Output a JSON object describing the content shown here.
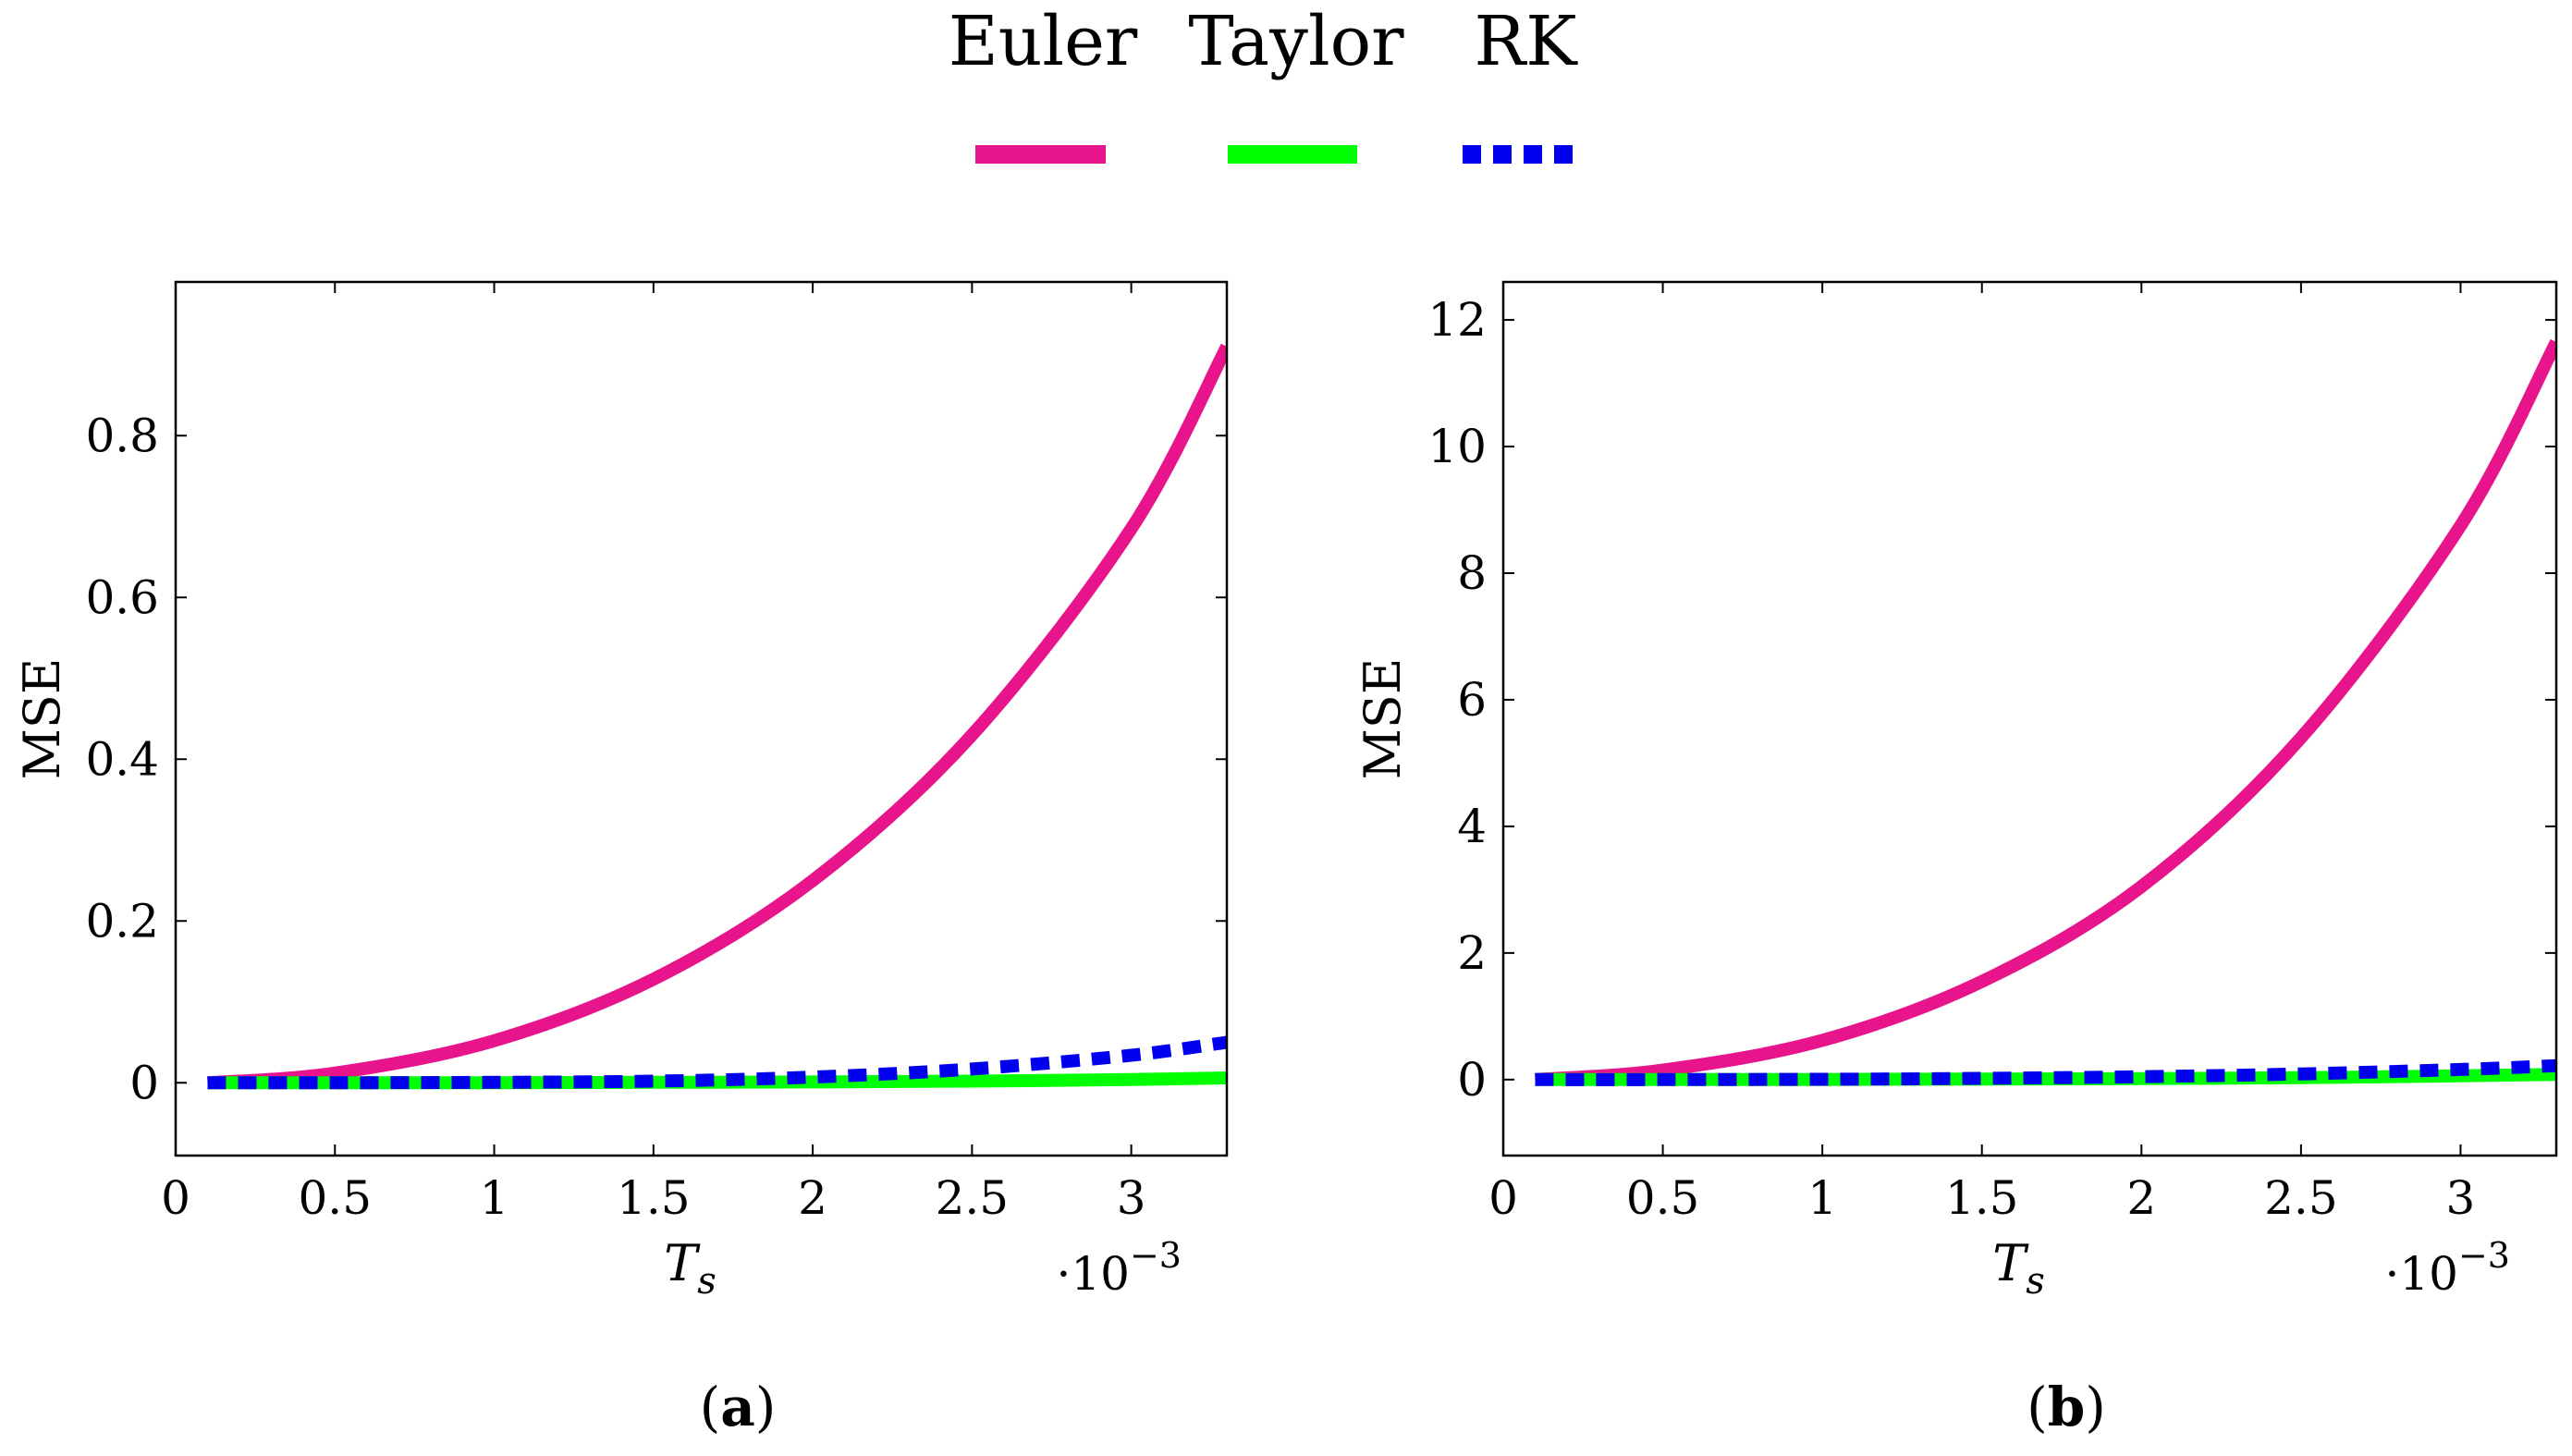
{
  "legend": {
    "position": "top-center",
    "entries": [
      {
        "label": "Euler",
        "color": "#e8148c",
        "style": "solid"
      },
      {
        "label": "Taylor",
        "color": "#00ff00",
        "style": "solid"
      },
      {
        "label": "RK",
        "color": "#0000ee",
        "style": "dashed"
      }
    ]
  },
  "chart_data": [
    {
      "type": "line",
      "panel_label": "a",
      "xlabel": "T",
      "xlabel_sub": "s",
      "ylabel": "MSE",
      "x_multiplier_base": "·10",
      "x_multiplier_exp": "−3",
      "xlim": [
        0,
        3.3
      ],
      "ylim": [
        -0.09,
        0.99
      ],
      "xticks": [
        0,
        0.5,
        1,
        1.5,
        2,
        2.5,
        3
      ],
      "xtick_labels": [
        "0",
        "0.5",
        "1",
        "1.5",
        "2",
        "2.5",
        "3"
      ],
      "yticks": [
        0,
        0.2,
        0.4,
        0.6,
        0.8
      ],
      "ytick_labels": [
        "0",
        "0.2",
        "0.4",
        "0.6",
        "0.8"
      ],
      "x": [
        0.1,
        0.5,
        1.0,
        1.5,
        2.0,
        2.5,
        3.0,
        3.3
      ],
      "series": [
        {
          "name": "Euler",
          "values": [
            0.0,
            0.012,
            0.052,
            0.128,
            0.25,
            0.43,
            0.685,
            0.91
          ]
        },
        {
          "name": "Taylor",
          "values": [
            0.0,
            0.0,
            0.0,
            0.0005,
            0.001,
            0.002,
            0.004,
            0.006
          ]
        },
        {
          "name": "RK",
          "values": [
            0.0,
            0.0,
            0.0005,
            0.002,
            0.007,
            0.017,
            0.034,
            0.05
          ]
        }
      ]
    },
    {
      "type": "line",
      "panel_label": "b",
      "xlabel": "T",
      "xlabel_sub": "s",
      "ylabel": "MSE",
      "x_multiplier_base": "·10",
      "x_multiplier_exp": "−3",
      "xlim": [
        0,
        3.3
      ],
      "ylim": [
        -1.2,
        12.6
      ],
      "xticks": [
        0,
        0.5,
        1,
        1.5,
        2,
        2.5,
        3
      ],
      "xtick_labels": [
        "0",
        "0.5",
        "1",
        "1.5",
        "2",
        "2.5",
        "3"
      ],
      "yticks": [
        0,
        2,
        4,
        6,
        8,
        10,
        12
      ],
      "ytick_labels": [
        "0",
        "2",
        "4",
        "6",
        "8",
        "10",
        "12"
      ],
      "x": [
        0.1,
        0.5,
        1.0,
        1.5,
        2.0,
        2.5,
        3.0,
        3.3
      ],
      "series": [
        {
          "name": "Euler",
          "values": [
            0.0,
            0.15,
            0.62,
            1.55,
            3.05,
            5.4,
            8.75,
            11.65
          ]
        },
        {
          "name": "Taylor",
          "values": [
            0.0,
            0.0,
            0.002,
            0.007,
            0.015,
            0.03,
            0.06,
            0.08
          ]
        },
        {
          "name": "RK",
          "values": [
            0.0,
            0.0,
            0.005,
            0.02,
            0.045,
            0.09,
            0.16,
            0.22
          ]
        }
      ]
    }
  ]
}
